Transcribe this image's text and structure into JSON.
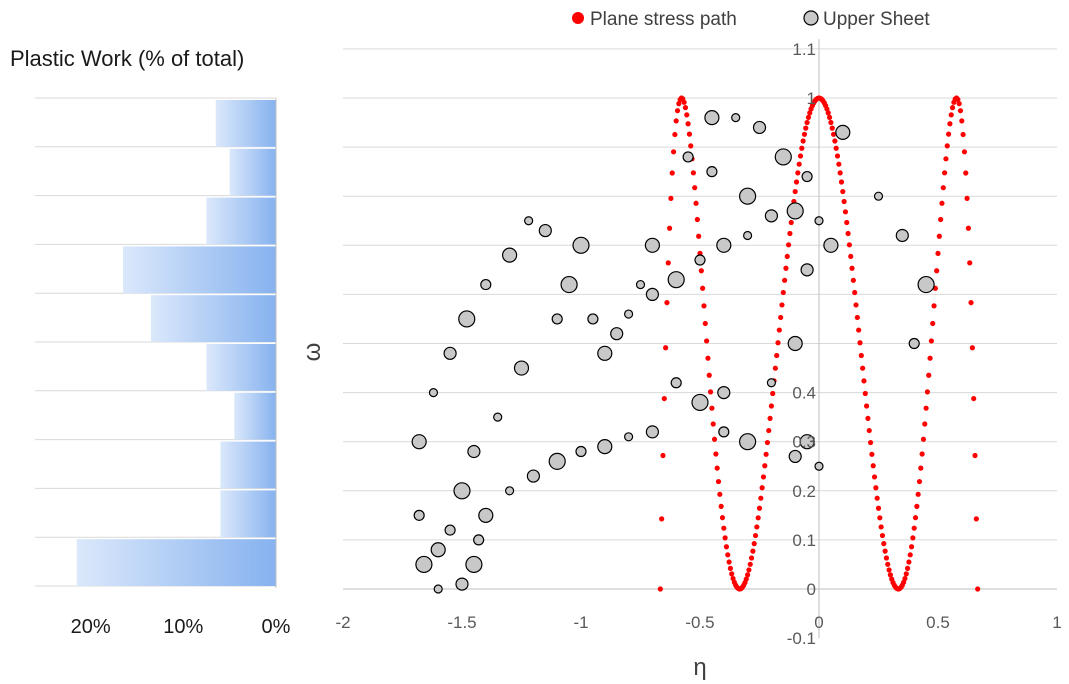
{
  "chart_data": [
    {
      "type": "bar",
      "orientation": "horizontal",
      "title": "Plastic Work (% of total)",
      "x_axis_reversed": true,
      "xlim": [
        0,
        26
      ],
      "tick_labels": [
        "20%",
        "10%",
        "0%"
      ],
      "tick_values": [
        20,
        10,
        0
      ],
      "values": [
        6.5,
        5,
        7.5,
        16.5,
        13.5,
        7.5,
        4.5,
        6,
        6,
        21.5
      ],
      "bar_color": "#a7c7f5"
    },
    {
      "type": "scatter",
      "xlabel": "η",
      "ylabel": "ω",
      "xlim": [
        -2,
        1
      ],
      "ylim": [
        -0.1,
        1.1
      ],
      "x_ticks": [
        -2,
        -1.5,
        -1,
        -0.5,
        0,
        0.5,
        1
      ],
      "x_tick_labels": [
        "-2",
        "-1.5",
        "-1",
        "-0.5",
        "0",
        "0.5",
        "1"
      ],
      "y_ticks": [
        -0.1,
        0,
        0.1,
        0.2,
        0.3,
        0.4,
        0.5,
        0.6,
        0.7,
        0.8,
        0.9,
        1,
        1.1
      ],
      "y_tick_labels": [
        "-0.1",
        "0",
        "0.1",
        "0.2",
        "0.3",
        "0.4",
        "",
        "",
        "",
        "",
        "",
        "1",
        "1.1"
      ],
      "grid": true,
      "legend_position": "top",
      "series": [
        {
          "name": "Plane stress path",
          "color": "#ff0000",
          "marker": "filled-dot",
          "formula": "omega = 1 - (27/2 * eta * (eta^2 - 1/3))^2, eta in [-2/3, 2/3]"
        },
        {
          "name": "Upper Sheet",
          "color": "#c8c8c8",
          "edge_color": "#000000",
          "marker": "hollow-circle",
          "points": [
            [
              -1.6,
              0.0
            ],
            [
              -1.5,
              0.01
            ],
            [
              -1.45,
              0.05
            ],
            [
              -1.43,
              0.1
            ],
            [
              -1.4,
              0.15
            ],
            [
              -1.3,
              0.2
            ],
            [
              -1.2,
              0.23
            ],
            [
              -1.1,
              0.26
            ],
            [
              -1.0,
              0.28
            ],
            [
              -0.9,
              0.29
            ],
            [
              -0.8,
              0.31
            ],
            [
              -0.7,
              0.32
            ],
            [
              -1.66,
              0.05
            ],
            [
              -1.68,
              0.15
            ],
            [
              -1.68,
              0.3
            ],
            [
              -1.62,
              0.4
            ],
            [
              -1.55,
              0.48
            ],
            [
              -1.48,
              0.55
            ],
            [
              -1.4,
              0.62
            ],
            [
              -1.3,
              0.68
            ],
            [
              -1.22,
              0.75
            ],
            [
              -1.15,
              0.73
            ],
            [
              -1.05,
              0.62
            ],
            [
              -0.95,
              0.55
            ],
            [
              -0.9,
              0.48
            ],
            [
              -0.8,
              0.56
            ],
            [
              -0.7,
              0.6
            ],
            [
              -0.6,
              0.63
            ],
            [
              -0.5,
              0.67
            ],
            [
              -0.4,
              0.7
            ],
            [
              -0.3,
              0.72
            ],
            [
              -0.2,
              0.76
            ],
            [
              -0.1,
              0.77
            ],
            [
              -0.55,
              0.88
            ],
            [
              -0.45,
              0.96
            ],
            [
              -0.35,
              0.96
            ],
            [
              -0.25,
              0.94
            ],
            [
              -0.15,
              0.88
            ],
            [
              -0.05,
              0.84
            ],
            [
              0.1,
              0.93
            ],
            [
              0.25,
              0.8
            ],
            [
              0.35,
              0.72
            ],
            [
              0.45,
              0.62
            ],
            [
              0.4,
              0.5
            ],
            [
              -0.1,
              0.5
            ],
            [
              -0.2,
              0.42
            ],
            [
              -0.4,
              0.4
            ],
            [
              -0.5,
              0.38
            ],
            [
              -0.6,
              0.42
            ],
            [
              -0.05,
              0.3
            ],
            [
              0.0,
              0.25
            ],
            [
              -0.1,
              0.27
            ],
            [
              -0.3,
              0.3
            ],
            [
              -0.4,
              0.32
            ],
            [
              0.05,
              0.7
            ],
            [
              0.0,
              0.75
            ],
            [
              -0.05,
              0.65
            ],
            [
              -0.3,
              0.8
            ],
            [
              -0.45,
              0.85
            ],
            [
              -0.7,
              0.7
            ],
            [
              -0.75,
              0.62
            ],
            [
              -0.85,
              0.52
            ],
            [
              -1.0,
              0.7
            ],
            [
              -1.1,
              0.55
            ],
            [
              -1.25,
              0.45
            ],
            [
              -1.35,
              0.35
            ],
            [
              -1.45,
              0.28
            ],
            [
              -1.5,
              0.2
            ],
            [
              -1.55,
              0.12
            ],
            [
              -1.6,
              0.08
            ]
          ]
        }
      ]
    }
  ]
}
